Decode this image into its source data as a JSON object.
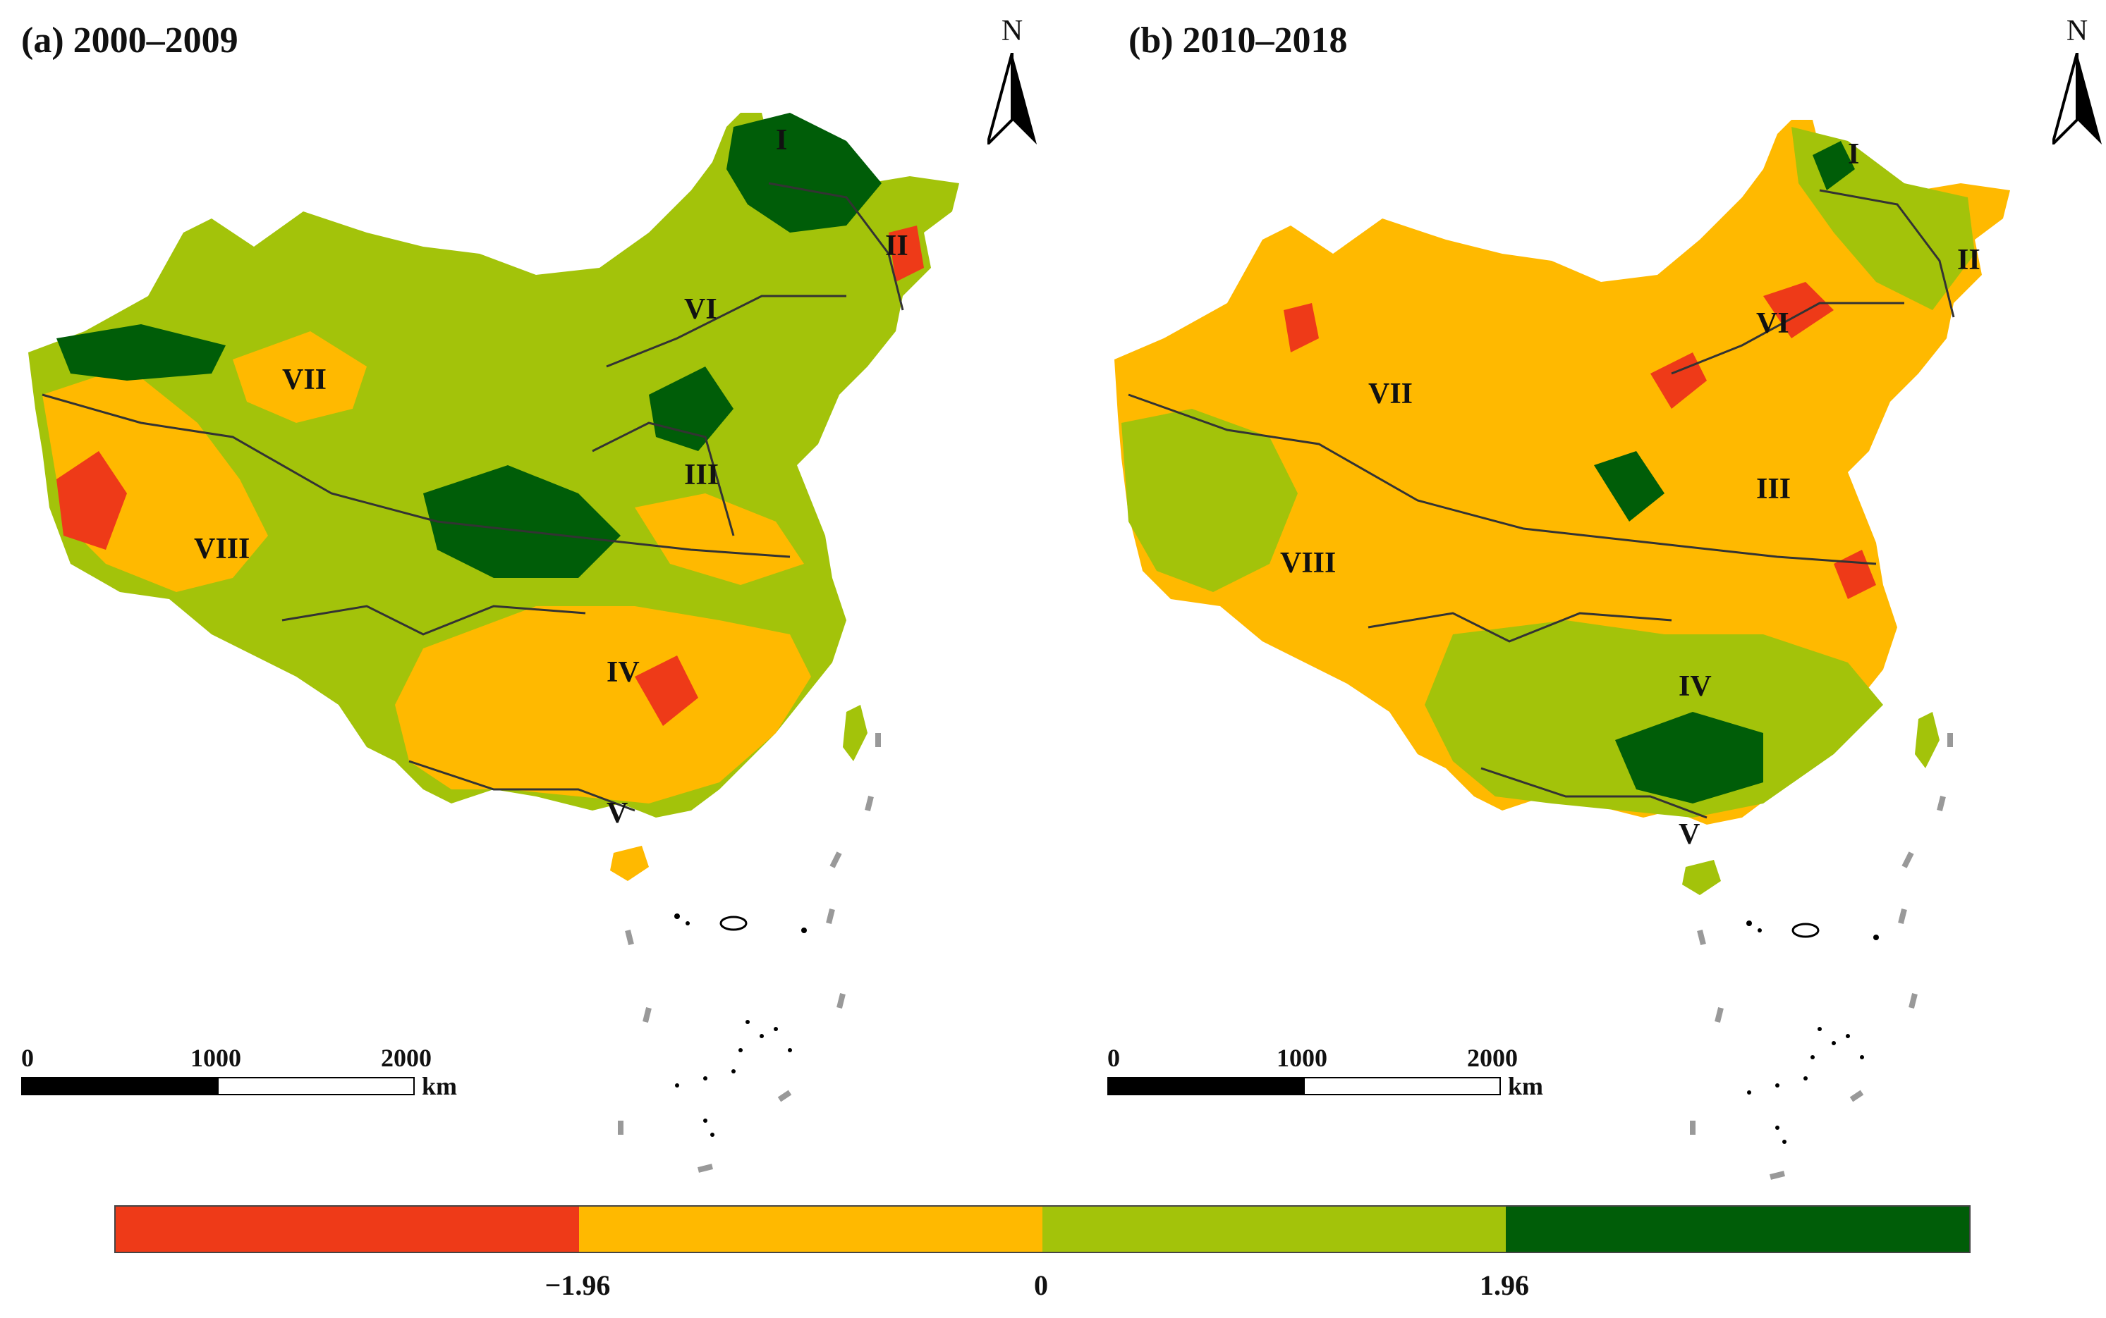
{
  "panels": [
    {
      "title": "(a) 2000–2009",
      "north_label": "N",
      "regions": [
        "I",
        "II",
        "III",
        "IV",
        "V",
        "VI",
        "VII",
        "VIII"
      ]
    },
    {
      "title": "(b) 2010–2018",
      "north_label": "N",
      "regions": [
        "I",
        "II",
        "III",
        "IV",
        "V",
        "VI",
        "VII",
        "VIII"
      ]
    }
  ],
  "scalebar": {
    "ticks": [
      "0",
      "1000",
      "2000"
    ],
    "unit": "km"
  },
  "legend": {
    "colors": [
      "#ee3a18",
      "#ffb900",
      "#a3c30a",
      "#005d08"
    ],
    "tick_labels": [
      "−1.96",
      "0",
      "1.96"
    ]
  }
}
